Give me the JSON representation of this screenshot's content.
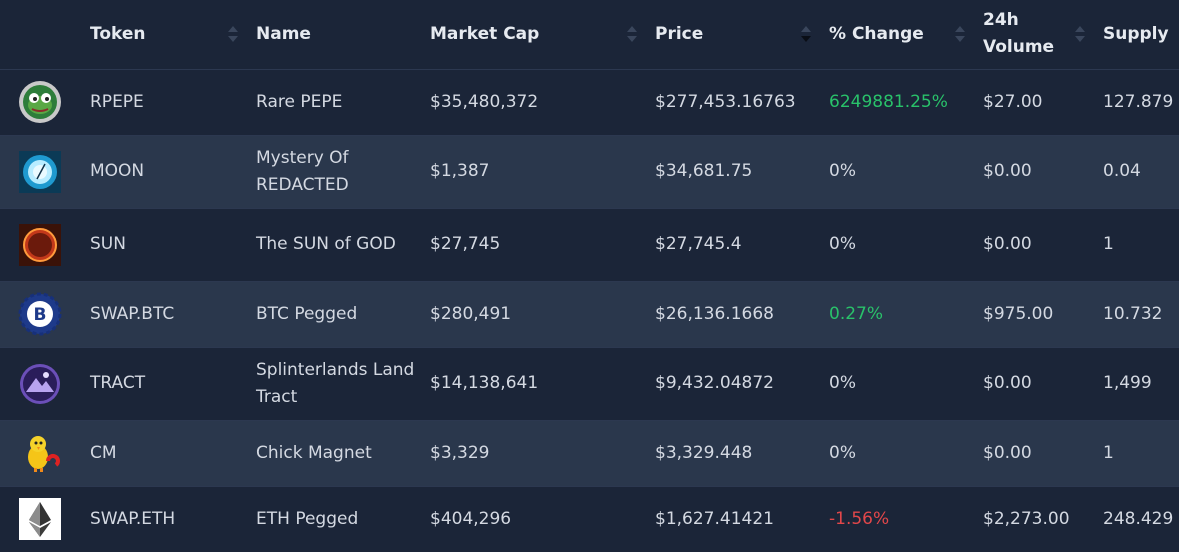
{
  "headers": {
    "token": "Token",
    "name": "Name",
    "market_cap": "Market Cap",
    "price": "Price",
    "change": "% Change",
    "volume_line1": "24h",
    "volume_line2": "Volume",
    "supply": "Supply"
  },
  "rows": [
    {
      "icon": "pepe-icon",
      "token": "RPEPE",
      "name": "Rare PEPE",
      "market_cap": "$35,480,372",
      "price": "$277,453.16763",
      "change": "6249881.25%",
      "change_dir": "pos",
      "volume": "$27.00",
      "supply": "127.879"
    },
    {
      "icon": "moon-icon",
      "token": "MOON",
      "name": "Mystery Of REDACTED",
      "market_cap": "$1,387",
      "price": "$34,681.75",
      "change": "0%",
      "change_dir": "neu",
      "volume": "$0.00",
      "supply": "0.04"
    },
    {
      "icon": "sun-icon",
      "token": "SUN",
      "name": "The SUN of GOD",
      "market_cap": "$27,745",
      "price": "$27,745.4",
      "change": "0%",
      "change_dir": "neu",
      "volume": "$0.00",
      "supply": "1"
    },
    {
      "icon": "swap-btc-icon",
      "token": "SWAP.BTC",
      "name": "BTC Pegged",
      "market_cap": "$280,491",
      "price": "$26,136.1668",
      "change": "0.27%",
      "change_dir": "pos",
      "volume": "$975.00",
      "supply": "10.732"
    },
    {
      "icon": "tract-icon",
      "token": "TRACT",
      "name": "Splinterlands Land Tract",
      "market_cap": "$14,138,641",
      "price": "$9,432.04872",
      "change": "0%",
      "change_dir": "neu",
      "volume": "$0.00",
      "supply": "1,499"
    },
    {
      "icon": "chick-icon",
      "token": "CM",
      "name": "Chick Magnet",
      "market_cap": "$3,329",
      "price": "$3,329.448",
      "change": "0%",
      "change_dir": "neu",
      "volume": "$0.00",
      "supply": "1"
    },
    {
      "icon": "ethereum-icon",
      "token": "SWAP.ETH",
      "name": "ETH Pegged",
      "market_cap": "$404,296",
      "price": "$1,627.41421",
      "change": "-1.56%",
      "change_dir": "neg",
      "volume": "$2,273.00",
      "supply": "248.429"
    }
  ],
  "colors": {
    "positive": "#29c26a",
    "negative": "#e2474a",
    "row_dark": "#1b2538",
    "row_light": "#2a374c"
  }
}
